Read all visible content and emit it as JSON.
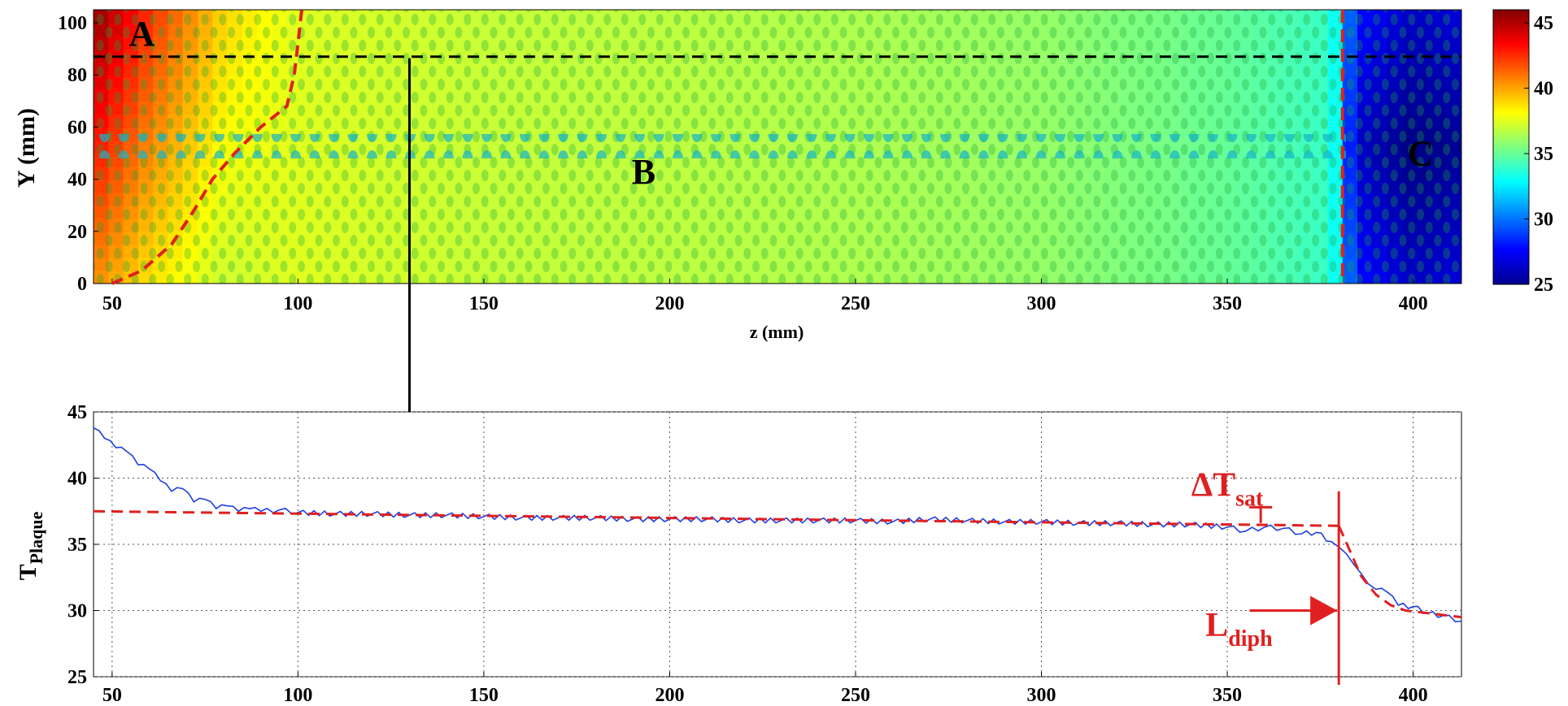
{
  "chart_data": [
    {
      "type": "heatmap",
      "xlabel": "z (mm)",
      "ylabel": "Y (mm)",
      "xlim": [
        45,
        413
      ],
      "ylim": [
        0,
        105
      ],
      "xticks": [
        50,
        100,
        150,
        200,
        250,
        300,
        350,
        400
      ],
      "yticks": [
        0,
        20,
        40,
        60,
        80,
        100
      ],
      "colorbar": {
        "ticks": [
          25,
          30,
          35,
          40,
          45
        ],
        "range": [
          25,
          46
        ],
        "colormap": "jet"
      },
      "regions": [
        {
          "label": "A",
          "z": 58,
          "y": 96
        },
        {
          "label": "B",
          "z": 193,
          "y": 43
        },
        {
          "label": "C",
          "z": 402,
          "y": 50
        }
      ],
      "profile_line_y": 87,
      "front_z": 381,
      "front_curve": [
        [
          50,
          0
        ],
        [
          58,
          5
        ],
        [
          66,
          15
        ],
        [
          72,
          28
        ],
        [
          77,
          40
        ],
        [
          83,
          50
        ],
        [
          90,
          60
        ],
        [
          97,
          68
        ],
        [
          99,
          80
        ],
        [
          100,
          92
        ],
        [
          101,
          105
        ]
      ],
      "field_sample": {
        "z": [
          45,
          60,
          80,
          100,
          150,
          200,
          250,
          300,
          350,
          378,
          385,
          400,
          413
        ],
        "mean_temp": [
          43,
          40.5,
          38,
          37.5,
          37,
          36.8,
          36.5,
          36,
          35,
          34,
          28,
          26.5,
          27
        ]
      },
      "grid": false
    },
    {
      "type": "line",
      "xlabel": "",
      "ylabel": "T",
      "ylabel_sub": "Plaque",
      "xlim": [
        45,
        413
      ],
      "ylim": [
        25,
        45
      ],
      "xticks": [
        50,
        100,
        150,
        200,
        250,
        300,
        350,
        400
      ],
      "yticks": [
        25,
        30,
        35,
        40,
        45
      ],
      "grid": true,
      "series": [
        {
          "color": "#1f3fe0",
          "x": [
            45,
            48,
            51,
            54,
            57,
            60,
            63,
            66,
            69,
            72,
            75,
            78,
            81,
            84,
            87,
            90,
            95,
            100,
            110,
            120,
            130,
            140,
            150,
            160,
            170,
            180,
            190,
            200,
            210,
            220,
            230,
            240,
            250,
            260,
            270,
            280,
            290,
            300,
            310,
            320,
            330,
            340,
            350,
            355,
            360,
            365,
            370,
            374,
            378,
            380,
            382,
            384,
            386,
            388,
            390,
            393,
            396,
            400,
            404,
            408,
            413
          ],
          "y": [
            43.8,
            43.0,
            42.3,
            42.0,
            41.0,
            40.7,
            39.8,
            39.0,
            39.2,
            38.2,
            38.4,
            37.7,
            37.9,
            37.5,
            37.7,
            37.5,
            37.6,
            37.4,
            37.3,
            37.3,
            37.2,
            37.2,
            37.1,
            37.0,
            37.0,
            37.0,
            36.9,
            36.9,
            36.9,
            36.8,
            36.8,
            36.8,
            36.8,
            36.7,
            36.9,
            36.8,
            36.7,
            36.7,
            36.6,
            36.6,
            36.5,
            36.5,
            36.3,
            36.0,
            36.3,
            36.2,
            35.8,
            35.9,
            35.2,
            34.8,
            34.3,
            33.5,
            32.8,
            32.0,
            31.6,
            31.4,
            30.4,
            30.3,
            29.8,
            29.6,
            29.2
          ]
        }
      ],
      "fits": [
        {
          "color": "#e02020",
          "x": [
            45,
            380
          ],
          "y": [
            37.5,
            36.4
          ]
        },
        {
          "color": "#e02020",
          "x": [
            380,
            383,
            386,
            390,
            394,
            398,
            404,
            413
          ],
          "y": [
            36.4,
            34.5,
            32.6,
            31.2,
            30.4,
            30.0,
            29.8,
            29.5
          ]
        }
      ],
      "annotations": [
        {
          "label": "ΔT",
          "sub": "sat",
          "z": 360,
          "y": 39.4
        },
        {
          "label": "L",
          "sub": "diph",
          "z": 366,
          "y": 28.8
        }
      ],
      "front_z": 380,
      "arrow_from_heatmap_z": 130
    }
  ]
}
